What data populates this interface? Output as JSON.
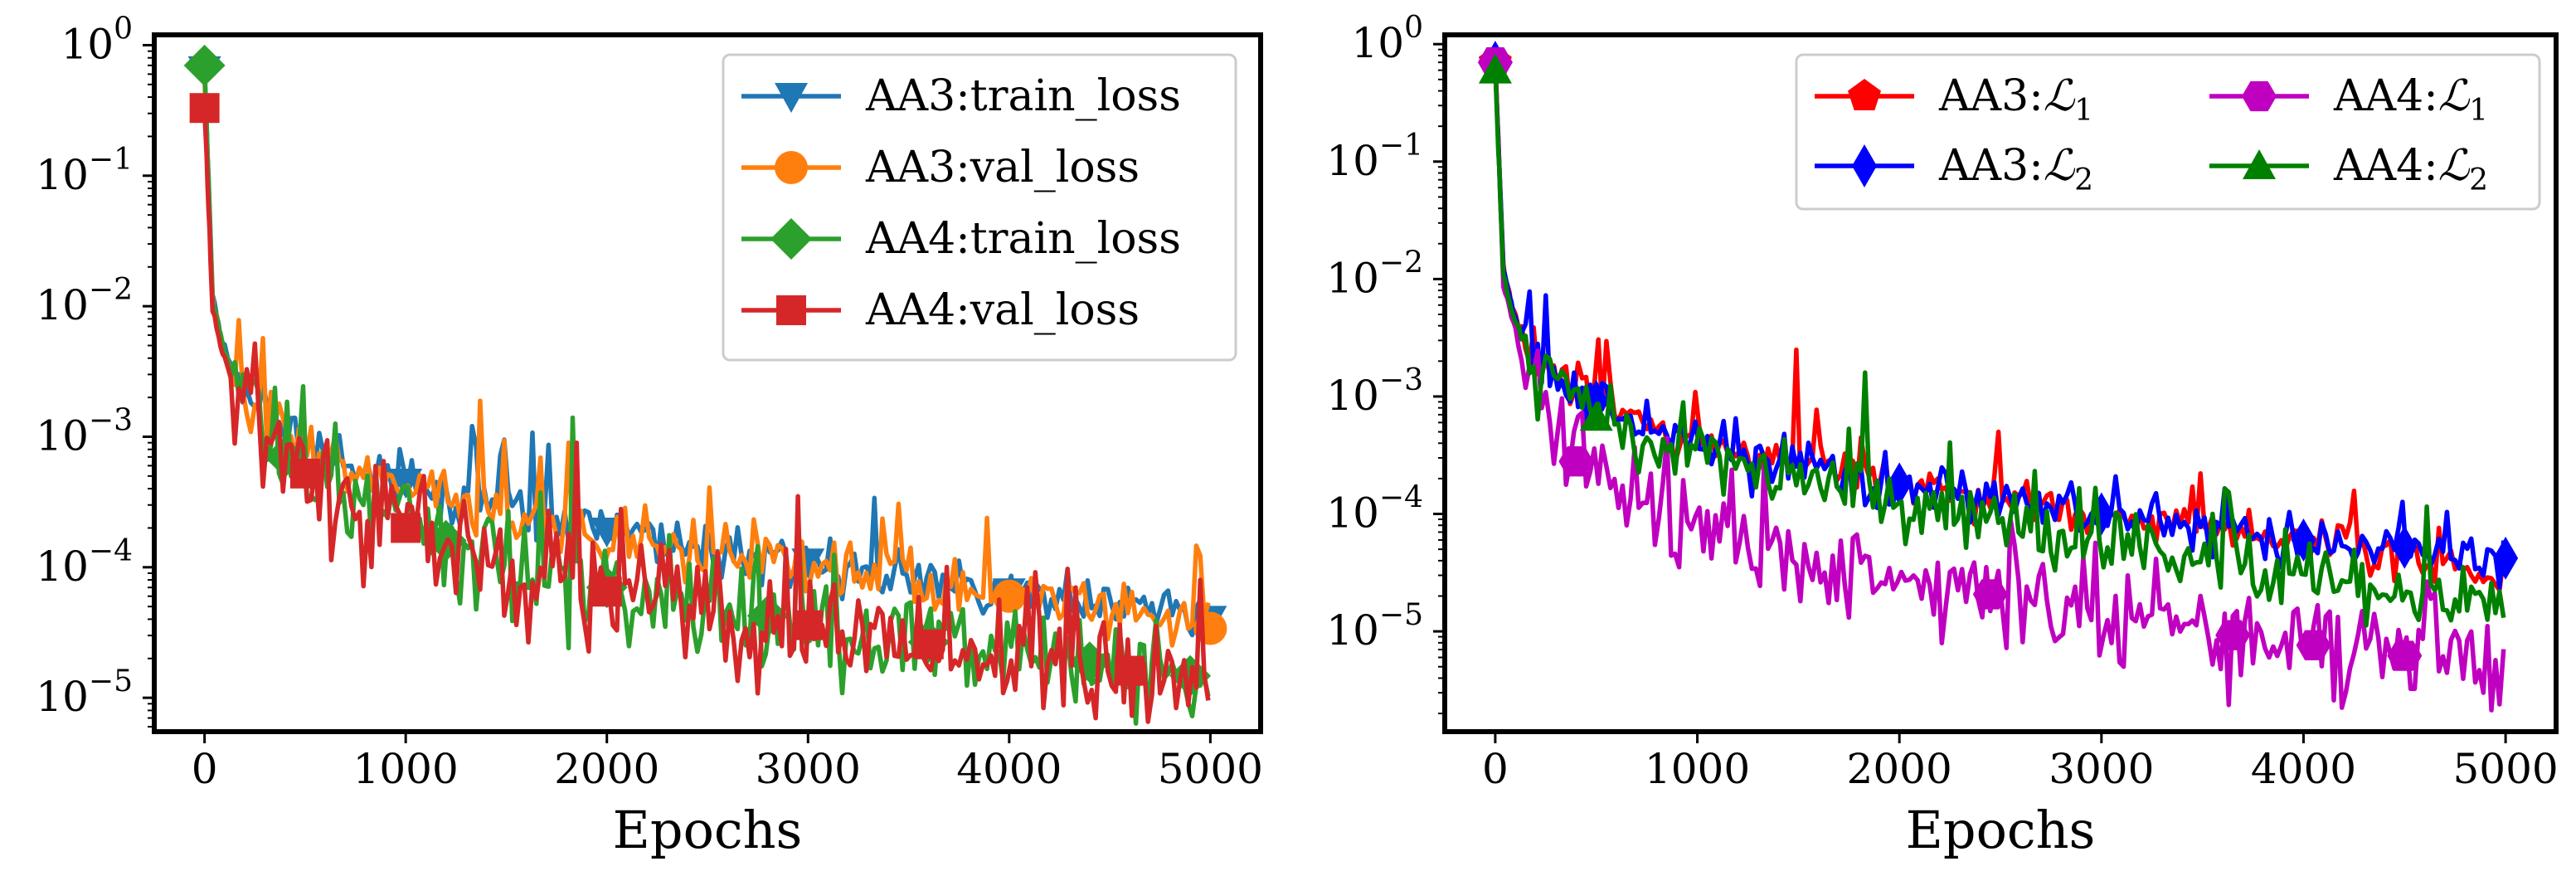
{
  "figure": {
    "description": "Two log-scale training loss plots"
  },
  "chart_data": [
    {
      "type": "line",
      "yscale": "log",
      "xlabel": "Epochs",
      "ylabel": "",
      "xlim": [
        -250,
        5250
      ],
      "ylim": [
        5.5e-06,
        1.2
      ],
      "xticks": [
        0,
        1000,
        2000,
        3000,
        4000,
        5000
      ],
      "xtick_labels": [
        "0",
        "1000",
        "2000",
        "3000",
        "4000",
        "5000"
      ],
      "yticks": [
        1,
        0.1,
        0.01,
        0.001,
        0.0001,
        1e-05
      ],
      "ytick_base": "10",
      "ytick_exponents": [
        "0",
        "−1",
        "−2",
        "−3",
        "−4",
        "−5"
      ],
      "legend": {
        "placement": "top-right",
        "columns": 1
      },
      "series": [
        {
          "name": "AA3:train_loss",
          "label_parts": [
            "AA3:train_loss"
          ],
          "color": "#1f77b4",
          "marker": "triangle-down",
          "anchors": [
            [
              0,
              0.65
            ],
            [
              40,
              0.012
            ],
            [
              80,
              0.006
            ],
            [
              150,
              0.0028
            ],
            [
              250,
              0.0016
            ],
            [
              400,
              0.0011
            ],
            [
              600,
              0.0008
            ],
            [
              800,
              0.0006
            ],
            [
              1000,
              0.00045
            ],
            [
              1200,
              0.00037
            ],
            [
              1500,
              0.00028
            ],
            [
              2000,
              0.00019
            ],
            [
              2500,
              0.00014
            ],
            [
              3000,
              0.00011
            ],
            [
              3500,
              8.5e-05
            ],
            [
              4000,
              6.5e-05
            ],
            [
              4500,
              5.5e-05
            ],
            [
              5000,
              4e-05
            ]
          ],
          "noise": 0.22,
          "spike_prob": 0.03,
          "spikes": [
            [
              1500,
              0.00095
            ]
          ],
          "markers_at": [
            0,
            1000,
            2000,
            3000,
            4000,
            5000
          ]
        },
        {
          "name": "AA3:val_loss",
          "label_parts": [
            "AA3:val_loss"
          ],
          "color": "#ff7f0e",
          "marker": "circle",
          "anchors": [
            [
              0,
              0.6
            ],
            [
              40,
              0.011
            ],
            [
              80,
              0.0055
            ],
            [
              150,
              0.0026
            ],
            [
              250,
              0.0015
            ],
            [
              400,
              0.001
            ],
            [
              600,
              0.00075
            ],
            [
              800,
              0.00055
            ],
            [
              1000,
              0.00042
            ],
            [
              1200,
              0.00034
            ],
            [
              1500,
              0.00026
            ],
            [
              2000,
              0.00017
            ],
            [
              2500,
              0.00013
            ],
            [
              3000,
              0.0001
            ],
            [
              3500,
              8e-05
            ],
            [
              4000,
              6e-05
            ],
            [
              4500,
              5e-05
            ],
            [
              5000,
              3.4e-05
            ]
          ],
          "noise": 0.25,
          "spike_prob": 0.03,
          "spikes": [
            [
              1820,
              0.0009
            ],
            [
              330,
              0.0022
            ]
          ],
          "markers_at": [
            4000,
            5000
          ]
        },
        {
          "name": "AA4:train_loss",
          "label_parts": [
            "AA4:train_loss"
          ],
          "color": "#2ca02c",
          "marker": "diamond",
          "anchors": [
            [
              0,
              0.7
            ],
            [
              40,
              0.011
            ],
            [
              80,
              0.0055
            ],
            [
              150,
              0.0024
            ],
            [
              250,
              0.0013
            ],
            [
              400,
              0.0007
            ],
            [
              600,
              0.00045
            ],
            [
              800,
              0.0003
            ],
            [
              1000,
              0.00022
            ],
            [
              1200,
              0.00016
            ],
            [
              1500,
              0.00011
            ],
            [
              2000,
              7e-05
            ],
            [
              2500,
              5e-05
            ],
            [
              3000,
              3.8e-05
            ],
            [
              3500,
              2.8e-05
            ],
            [
              4000,
              2.2e-05
            ],
            [
              4500,
              1.8e-05
            ],
            [
              5000,
              1.4e-05
            ]
          ],
          "noise": 0.5,
          "spike_prob": 0.04,
          "spikes": [
            [
              1840,
              0.0014
            ]
          ],
          "markers_at": [
            0,
            400,
            1200,
            2000,
            2800,
            3600,
            4400,
            4900
          ]
        },
        {
          "name": "AA4:val_loss",
          "label_parts": [
            "AA4:val_loss"
          ],
          "color": "#d62728",
          "marker": "square",
          "anchors": [
            [
              0,
              0.33
            ],
            [
              40,
              0.01
            ],
            [
              80,
              0.005
            ],
            [
              150,
              0.0022
            ],
            [
              250,
              0.0012
            ],
            [
              400,
              0.00065
            ],
            [
              600,
              0.00042
            ],
            [
              800,
              0.00028
            ],
            [
              1000,
              0.0002
            ],
            [
              1200,
              0.00015
            ],
            [
              1500,
              0.0001
            ],
            [
              2000,
              6.5e-05
            ],
            [
              2500,
              4.8e-05
            ],
            [
              3000,
              3.6e-05
            ],
            [
              3500,
              2.7e-05
            ],
            [
              4000,
              2.1e-05
            ],
            [
              4500,
              1.7e-05
            ],
            [
              5000,
              1.3e-05
            ]
          ],
          "noise": 0.55,
          "spike_prob": 0.04,
          "spikes": [
            [
              1850,
              0.0009
            ],
            [
              2950,
              0.00035
            ],
            [
              4950,
              8e-05
            ]
          ],
          "markers_at": [
            0,
            500,
            1000,
            2000,
            3000,
            3600,
            4600
          ]
        }
      ]
    },
    {
      "type": "line",
      "yscale": "log",
      "xlabel": "Epochs",
      "ylabel": "",
      "xlim": [
        -250,
        5250
      ],
      "ylim": [
        1.4e-06,
        1.2
      ],
      "xticks": [
        0,
        1000,
        2000,
        3000,
        4000,
        5000
      ],
      "xtick_labels": [
        "0",
        "1000",
        "2000",
        "3000",
        "4000",
        "5000"
      ],
      "yticks": [
        1,
        0.1,
        0.01,
        0.001,
        0.0001,
        1e-05
      ],
      "ytick_base": "10",
      "ytick_exponents": [
        "0",
        "−1",
        "−2",
        "−3",
        "−4",
        "−5"
      ],
      "legend": {
        "placement": "top-right",
        "columns": 2
      },
      "series": [
        {
          "name": "AA3:L1",
          "label_parts": [
            "AA3:",
            "ℒ",
            "1"
          ],
          "color": "#ff0000",
          "marker": "pentagon",
          "anchors": [
            [
              0,
              0.7
            ],
            [
              40,
              0.012
            ],
            [
              80,
              0.006
            ],
            [
              150,
              0.003
            ],
            [
              250,
              0.0018
            ],
            [
              400,
              0.0012
            ],
            [
              600,
              0.0008
            ],
            [
              800,
              0.00055
            ],
            [
              1000,
              0.00042
            ],
            [
              1200,
              0.00035
            ],
            [
              1500,
              0.00026
            ],
            [
              2000,
              0.00019
            ],
            [
              2500,
              0.00014
            ],
            [
              3000,
              0.0001
            ],
            [
              3500,
              8e-05
            ],
            [
              4000,
              6e-05
            ],
            [
              4500,
              4.5e-05
            ],
            [
              5000,
              3e-05
            ]
          ],
          "noise": 0.22,
          "spike_prob": 0.03,
          "spikes": [
            [
              1500,
              0.0025
            ],
            [
              2500,
              0.0005
            ]
          ],
          "markers_at": [
            0
          ]
        },
        {
          "name": "AA3:L2",
          "label_parts": [
            "AA3:",
            "ℒ",
            "2"
          ],
          "color": "#0000ff",
          "marker": "thin-diamond",
          "anchors": [
            [
              0,
              0.7
            ],
            [
              40,
              0.012
            ],
            [
              80,
              0.006
            ],
            [
              150,
              0.0028
            ],
            [
              250,
              0.0017
            ],
            [
              400,
              0.0011
            ],
            [
              600,
              0.00075
            ],
            [
              800,
              0.00052
            ],
            [
              1000,
              0.0004
            ],
            [
              1200,
              0.00032
            ],
            [
              1500,
              0.00025
            ],
            [
              2000,
              0.00018
            ],
            [
              2500,
              0.00013
            ],
            [
              3000,
              0.0001
            ],
            [
              3500,
              8e-05
            ],
            [
              4000,
              6e-05
            ],
            [
              4500,
              5.2e-05
            ],
            [
              5000,
              4.2e-05
            ]
          ],
          "noise": 0.25,
          "spike_prob": 0.03,
          "spikes": [
            [
              1200,
              0.00065
            ]
          ],
          "markers_at": [
            0,
            500,
            2000,
            3000,
            4000,
            4500,
            5000
          ]
        },
        {
          "name": "AA4:L1",
          "label_parts": [
            "AA4:",
            "ℒ",
            "1"
          ],
          "color": "#c000c0",
          "marker": "hexagon",
          "anchors": [
            [
              0,
              0.7
            ],
            [
              40,
              0.01
            ],
            [
              80,
              0.005
            ],
            [
              150,
              0.0015
            ],
            [
              250,
              0.0007
            ],
            [
              400,
              0.00028
            ],
            [
              600,
              0.00017
            ],
            [
              800,
              0.00011
            ],
            [
              1000,
              8e-05
            ],
            [
              1200,
              5.8e-05
            ],
            [
              1500,
              4e-05
            ],
            [
              2000,
              2.8e-05
            ],
            [
              2500,
              2e-05
            ],
            [
              3000,
              1.4e-05
            ],
            [
              3500,
              1e-05
            ],
            [
              4000,
              7.8e-06
            ],
            [
              4500,
              6.2e-06
            ],
            [
              5000,
              5e-06
            ]
          ],
          "noise": 0.6,
          "spike_prob": 0.03,
          "spikes": [],
          "markers_at": [
            0,
            400,
            2450,
            3650,
            4050,
            4500
          ]
        },
        {
          "name": "AA4:L2",
          "label_parts": [
            "AA4:",
            "ℒ",
            "2"
          ],
          "color": "#008000",
          "marker": "triangle-up",
          "anchors": [
            [
              0,
              0.6
            ],
            [
              40,
              0.011
            ],
            [
              80,
              0.0055
            ],
            [
              150,
              0.0024
            ],
            [
              250,
              0.0013
            ],
            [
              400,
              0.0008
            ],
            [
              600,
              0.00055
            ],
            [
              800,
              0.0004
            ],
            [
              1000,
              0.0003
            ],
            [
              1200,
              0.00025
            ],
            [
              1500,
              0.00018
            ],
            [
              2000,
              0.00012
            ],
            [
              2500,
              8e-05
            ],
            [
              3000,
              6e-05
            ],
            [
              3500,
              4.2e-05
            ],
            [
              4000,
              3.2e-05
            ],
            [
              4500,
              2.4e-05
            ],
            [
              5000,
              1.6e-05
            ]
          ],
          "noise": 0.35,
          "spike_prob": 0.03,
          "spikes": [
            [
              1840,
              0.0016
            ]
          ],
          "markers_at": [
            0,
            500
          ]
        }
      ]
    }
  ]
}
